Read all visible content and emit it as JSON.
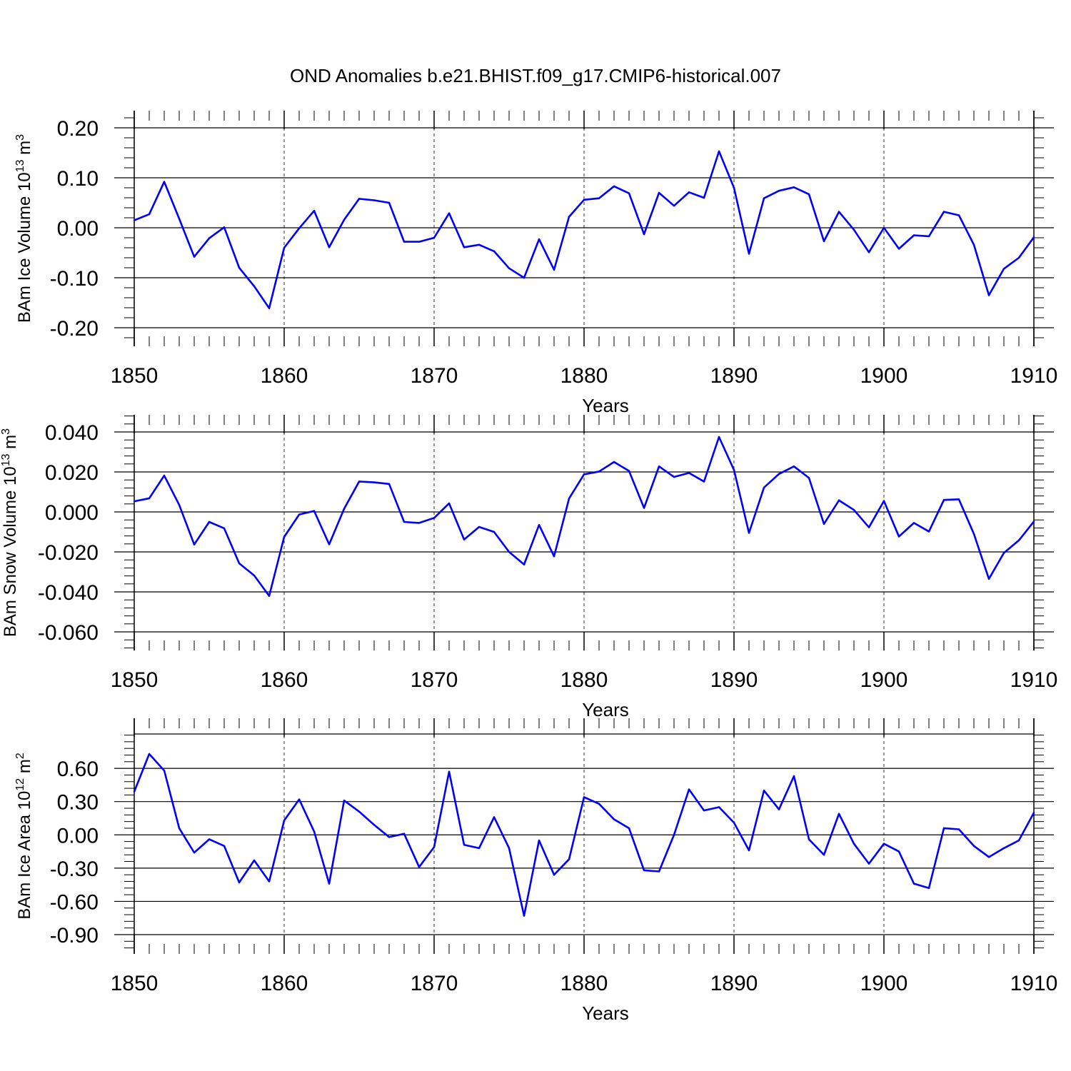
{
  "title": "OND Anomalies b.e21.BHIST.f09_g17.CMIP6-historical.007",
  "colors": {
    "line": "#0000ff",
    "axis": "#000000",
    "grid": "#000000"
  },
  "chart_data": [
    {
      "type": "line",
      "ylabel_main": "BAm Ice Volume 10",
      "ylabel_exp": "13",
      "ylabel_unit": " m",
      "ylabel_unit_exp": "3",
      "xlabel": "Years",
      "xlim": [
        1850,
        1910
      ],
      "ylim": [
        -0.2,
        0.2
      ],
      "xticks": [
        1850,
        1860,
        1870,
        1880,
        1890,
        1900,
        1910
      ],
      "yticks": [
        -0.2,
        -0.1,
        0.0,
        0.1,
        0.2
      ],
      "ytick_labels": [
        "-0.20",
        "-0.10",
        "0.00",
        "0.10",
        "0.20"
      ],
      "x": [
        1850,
        1851,
        1852,
        1853,
        1854,
        1855,
        1856,
        1857,
        1858,
        1859,
        1860,
        1861,
        1862,
        1863,
        1864,
        1865,
        1866,
        1867,
        1868,
        1869,
        1870,
        1871,
        1872,
        1873,
        1874,
        1875,
        1876,
        1877,
        1878,
        1879,
        1880,
        1881,
        1882,
        1883,
        1884,
        1885,
        1886,
        1887,
        1888,
        1889,
        1890,
        1891,
        1892,
        1893,
        1894,
        1895,
        1896,
        1897,
        1898,
        1899,
        1900,
        1901,
        1902,
        1903,
        1904,
        1905,
        1906,
        1907,
        1908,
        1909,
        1910
      ],
      "values": [
        0.015,
        0.027,
        0.092,
        0.018,
        -0.058,
        -0.021,
        0.001,
        -0.08,
        -0.117,
        -0.161,
        -0.04,
        -0.001,
        0.034,
        -0.039,
        0.016,
        0.058,
        0.055,
        0.05,
        -0.028,
        -0.028,
        -0.02,
        0.029,
        -0.039,
        -0.034,
        -0.047,
        -0.081,
        -0.1,
        -0.023,
        -0.084,
        0.022,
        0.056,
        0.059,
        0.083,
        0.069,
        -0.013,
        0.07,
        0.044,
        0.071,
        0.06,
        0.153,
        0.08,
        -0.052,
        0.059,
        0.074,
        0.081,
        0.067,
        -0.027,
        0.032,
        -0.004,
        -0.049,
        0.0,
        -0.042,
        -0.015,
        -0.017,
        0.032,
        0.025,
        -0.034,
        -0.135,
        -0.082,
        -0.06,
        -0.019
      ]
    },
    {
      "type": "line",
      "ylabel_main": "BAm Snow Volume 10",
      "ylabel_exp": "13",
      "ylabel_unit": " m",
      "ylabel_unit_exp": "3",
      "xlabel": "Years",
      "xlim": [
        1850,
        1910
      ],
      "ylim": [
        -0.06,
        0.04
      ],
      "xticks": [
        1850,
        1860,
        1870,
        1880,
        1890,
        1900,
        1910
      ],
      "yticks": [
        -0.06,
        -0.04,
        -0.02,
        0.0,
        0.02,
        0.04
      ],
      "ytick_labels": [
        "-0.060",
        "-0.040",
        "-0.020",
        "0.000",
        "0.020",
        "0.040"
      ],
      "x": [
        1850,
        1851,
        1852,
        1853,
        1854,
        1855,
        1856,
        1857,
        1858,
        1859,
        1860,
        1861,
        1862,
        1863,
        1864,
        1865,
        1866,
        1867,
        1868,
        1869,
        1870,
        1871,
        1872,
        1873,
        1874,
        1875,
        1876,
        1877,
        1878,
        1879,
        1880,
        1881,
        1882,
        1883,
        1884,
        1885,
        1886,
        1887,
        1888,
        1889,
        1890,
        1891,
        1892,
        1893,
        1894,
        1895,
        1896,
        1897,
        1898,
        1899,
        1900,
        1901,
        1902,
        1903,
        1904,
        1905,
        1906,
        1907,
        1908,
        1909,
        1910
      ],
      "values": [
        0.0053,
        0.0068,
        0.0182,
        0.0035,
        -0.0163,
        -0.005,
        -0.0082,
        -0.0257,
        -0.0318,
        -0.042,
        -0.0125,
        -0.0013,
        0.0005,
        -0.0162,
        0.0016,
        0.0152,
        0.0148,
        0.014,
        -0.005,
        -0.0055,
        -0.003,
        0.0043,
        -0.0138,
        -0.0075,
        -0.01,
        -0.02,
        -0.0263,
        -0.0065,
        -0.0222,
        0.0067,
        0.0188,
        0.0202,
        0.025,
        0.0205,
        0.002,
        0.0228,
        0.0175,
        0.0195,
        0.0152,
        0.0375,
        0.021,
        -0.0105,
        0.0122,
        0.019,
        0.0228,
        0.017,
        -0.006,
        0.0058,
        0.001,
        -0.0077,
        0.0055,
        -0.0123,
        -0.0055,
        -0.0098,
        0.006,
        0.0063,
        -0.011,
        -0.0335,
        -0.0205,
        -0.0142,
        -0.0048
      ]
    },
    {
      "type": "line",
      "ylabel_main": "BAm Ice Area 10",
      "ylabel_exp": "12",
      "ylabel_unit": " m",
      "ylabel_unit_exp": "2",
      "xlabel": "Years",
      "xlim": [
        1850,
        1910
      ],
      "ylim": [
        -0.9,
        0.91
      ],
      "xticks": [
        1850,
        1860,
        1870,
        1880,
        1890,
        1900,
        1910
      ],
      "yticks": [
        -0.9,
        -0.6,
        -0.3,
        0.0,
        0.3,
        0.6
      ],
      "ytick_labels": [
        "-0.90",
        "-0.60",
        "-0.30",
        "0.00",
        "0.30",
        "0.60"
      ],
      "x": [
        1850,
        1851,
        1852,
        1853,
        1854,
        1855,
        1856,
        1857,
        1858,
        1859,
        1860,
        1861,
        1862,
        1863,
        1864,
        1865,
        1866,
        1867,
        1868,
        1869,
        1870,
        1871,
        1872,
        1873,
        1874,
        1875,
        1876,
        1877,
        1878,
        1879,
        1880,
        1881,
        1882,
        1883,
        1884,
        1885,
        1886,
        1887,
        1888,
        1889,
        1890,
        1891,
        1892,
        1893,
        1894,
        1895,
        1896,
        1897,
        1898,
        1899,
        1900,
        1901,
        1902,
        1903,
        1904,
        1905,
        1906,
        1907,
        1908,
        1909,
        1910
      ],
      "values": [
        0.39,
        0.73,
        0.58,
        0.06,
        -0.16,
        -0.04,
        -0.1,
        -0.43,
        -0.23,
        -0.42,
        0.13,
        0.32,
        0.03,
        -0.44,
        0.31,
        0.21,
        0.09,
        -0.02,
        0.01,
        -0.29,
        -0.11,
        0.57,
        -0.09,
        -0.12,
        0.16,
        -0.12,
        -0.73,
        -0.05,
        -0.36,
        -0.22,
        0.34,
        0.28,
        0.14,
        0.06,
        -0.32,
        -0.33,
        0.0,
        0.41,
        0.22,
        0.25,
        0.11,
        -0.14,
        0.4,
        0.23,
        0.53,
        -0.04,
        -0.18,
        0.19,
        -0.08,
        -0.26,
        -0.08,
        -0.15,
        -0.44,
        -0.48,
        0.06,
        0.05,
        -0.1,
        -0.2,
        -0.12,
        -0.05,
        0.2
      ]
    }
  ]
}
